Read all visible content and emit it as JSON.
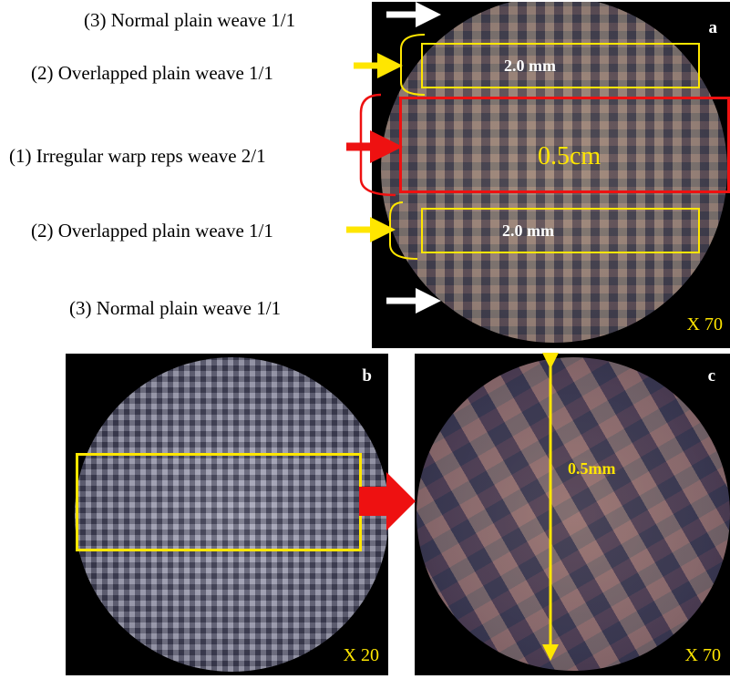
{
  "labels": {
    "normal_top": "(3) Normal plain weave 1/1",
    "overlapped_top": "(2) Overlapped plain weave 1/1",
    "irregular": "(1) Irregular warp reps weave 2/1",
    "overlapped_bottom": "(2) Overlapped plain weave 1/1",
    "normal_bottom": "(3) Normal plain weave 1/1"
  },
  "panel_a": {
    "tag": "a",
    "band_top_text": "2.0 mm",
    "band_center_text": "0.5cm",
    "band_bottom_text": "2.0 mm",
    "magnification": "X 70"
  },
  "panel_b": {
    "tag": "b",
    "magnification": "X 20"
  },
  "panel_c": {
    "tag": "c",
    "scale_text": "0.5mm",
    "magnification": "X 70"
  },
  "colors": {
    "highlight_yellow": "#ffe600",
    "highlight_red": "#ee1111",
    "arrow_white": "#ffffff"
  }
}
